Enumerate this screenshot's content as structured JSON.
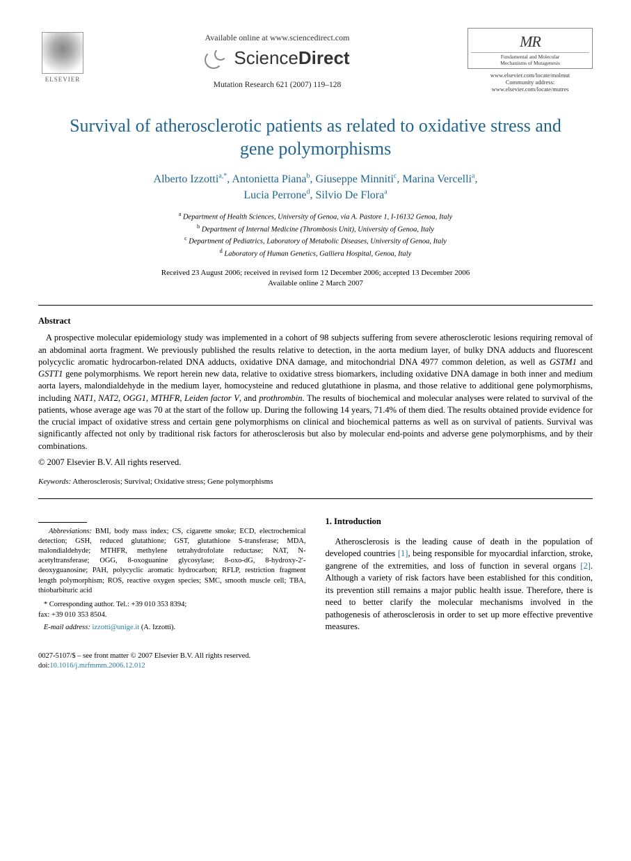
{
  "header": {
    "elsevier": "ELSEVIER",
    "available": "Available online at www.sciencedirect.com",
    "sd_brand_a": "Science",
    "sd_brand_b": "Direct",
    "journal_ref": "Mutation Research 621 (2007) 119–128",
    "right_logo_line1": "Fundamental and Molecular",
    "right_logo_line2": "Mechanisms of Mutagenesis",
    "link1": "www.elsevier.com/locate/molmut",
    "link2_label": "Community address:",
    "link2": "www.elsevier.com/locate/mutres"
  },
  "title": "Survival of atherosclerotic patients as related to oxidative stress and gene polymorphisms",
  "authors": [
    {
      "name": "Alberto Izzotti",
      "aff": "a,*"
    },
    {
      "name": "Antonietta Piana",
      "aff": "b"
    },
    {
      "name": "Giuseppe Minniti",
      "aff": "c"
    },
    {
      "name": "Marina Vercelli",
      "aff": "a"
    },
    {
      "name": "Lucia Perrone",
      "aff": "d"
    },
    {
      "name": "Silvio De Flora",
      "aff": "a"
    }
  ],
  "affiliations": {
    "a": "Department of Health Sciences, University of Genoa, via A. Pastore 1, I-16132 Genoa, Italy",
    "b": "Department of Internal Medicine (Thrombosis Unit), University of Genoa, Italy",
    "c": "Department of Pediatrics, Laboratory of Metabolic Diseases, University of Genoa, Italy",
    "d": "Laboratory of Human Genetics, Galliera Hospital, Genoa, Italy"
  },
  "dates": {
    "line1": "Received 23 August 2006; received in revised form 12 December 2006; accepted 13 December 2006",
    "line2": "Available online 2 March 2007"
  },
  "abstract": {
    "heading": "Abstract",
    "p_pre": "A prospective molecular epidemiology study was implemented in a cohort of 98 subjects suffering from severe atherosclerotic lesions requiring removal of an abdominal aorta fragment. We previously published the results relative to detection, in the aorta medium layer, of bulky DNA adducts and fluorescent polycyclic aromatic hydrocarbon-related DNA adducts, oxidative DNA damage, and mitochondrial DNA 4977 common deletion, as well as ",
    "g1": "GSTM1",
    "mid1": " and ",
    "g2": "GSTT1",
    "p_mid": " gene polymorphisms. We report herein new data, relative to oxidative stress biomarkers, including oxidative DNA damage in both inner and medium aorta layers, malondialdehyde in the medium layer, homocysteine and reduced glutathione in plasma, and those relative to additional gene polymorphisms, including ",
    "g3": "NAT1",
    "c1": ", ",
    "g4": "NAT2",
    "c2": ", ",
    "g5": "OGG1",
    "c3": ", ",
    "g6": "MTHFR",
    "c4": ", ",
    "g7": "Leiden factor V",
    "c5": ", and ",
    "g8": "prothrombin",
    "p_post": ". The results of biochemical and molecular analyses were related to survival of the patients, whose average age was 70 at the start of the follow up. During the following 14 years, 71.4% of them died. The results obtained provide evidence for the crucial impact of oxidative stress and certain gene polymorphisms on clinical and biochemical patterns as well as on survival of patients. Survival was significantly affected not only by traditional risk factors for atherosclerosis but also by molecular end-points and adverse gene polymorphisms, and by their combinations.",
    "copyright": "© 2007 Elsevier B.V. All rights reserved."
  },
  "keywords": {
    "label": "Keywords:",
    "text": " Atherosclerosis; Survival; Oxidative stress; Gene polymorphisms"
  },
  "footnotes": {
    "abbrev_label": "Abbreviations:",
    "abbrev_text": " BMI, body mass index; CS, cigarette smoke; ECD, electrochemical detection; GSH, reduced glutathione; GST, glutathione S-transferase; MDA, malondialdehyde; MTHFR, methylene tetrahydrofolate reductase; NAT, N-acetyltransferase; OGG, 8-oxoguanine glycosylase; 8-oxo-dG, 8-hydroxy-2′-deoxyguanosine; PAH, polycyclic aromatic hydrocarbon; RFLP, restriction fragment length polymorphism; ROS, reactive oxygen species; SMC, smooth muscle cell; TBA, thiobarbituric acid",
    "corr_label": "* Corresponding author. Tel.: +39 010 353 8394;",
    "corr_fax": "fax: +39 010 353 8504.",
    "email_label": "E-mail address:",
    "email": "izzotti@unige.it",
    "email_who": " (A. Izzotti)."
  },
  "intro": {
    "heading": "1.  Introduction",
    "p_a": "Atherosclerosis is the leading cause of death in the population of developed countries ",
    "cite1": "[1]",
    "p_b": ", being responsible for myocardial infarction, stroke, gangrene of the extremities, and loss of function in several organs ",
    "cite2": "[2]",
    "p_c": ". Although a variety of risk factors have been established for this condition, its prevention still remains a major public health issue. Therefore, there is need to better clarify the molecular mechanisms involved in the pathogenesis of atherosclerosis in order to set up more effective preventive measures."
  },
  "footer": {
    "line1": "0027-5107/$ – see front matter © 2007 Elsevier B.V. All rights reserved.",
    "doi_label": "doi:",
    "doi": "10.1016/j.mrfmmm.2006.12.012"
  },
  "colors": {
    "link": "#2a7aa8",
    "title": "#206590"
  }
}
